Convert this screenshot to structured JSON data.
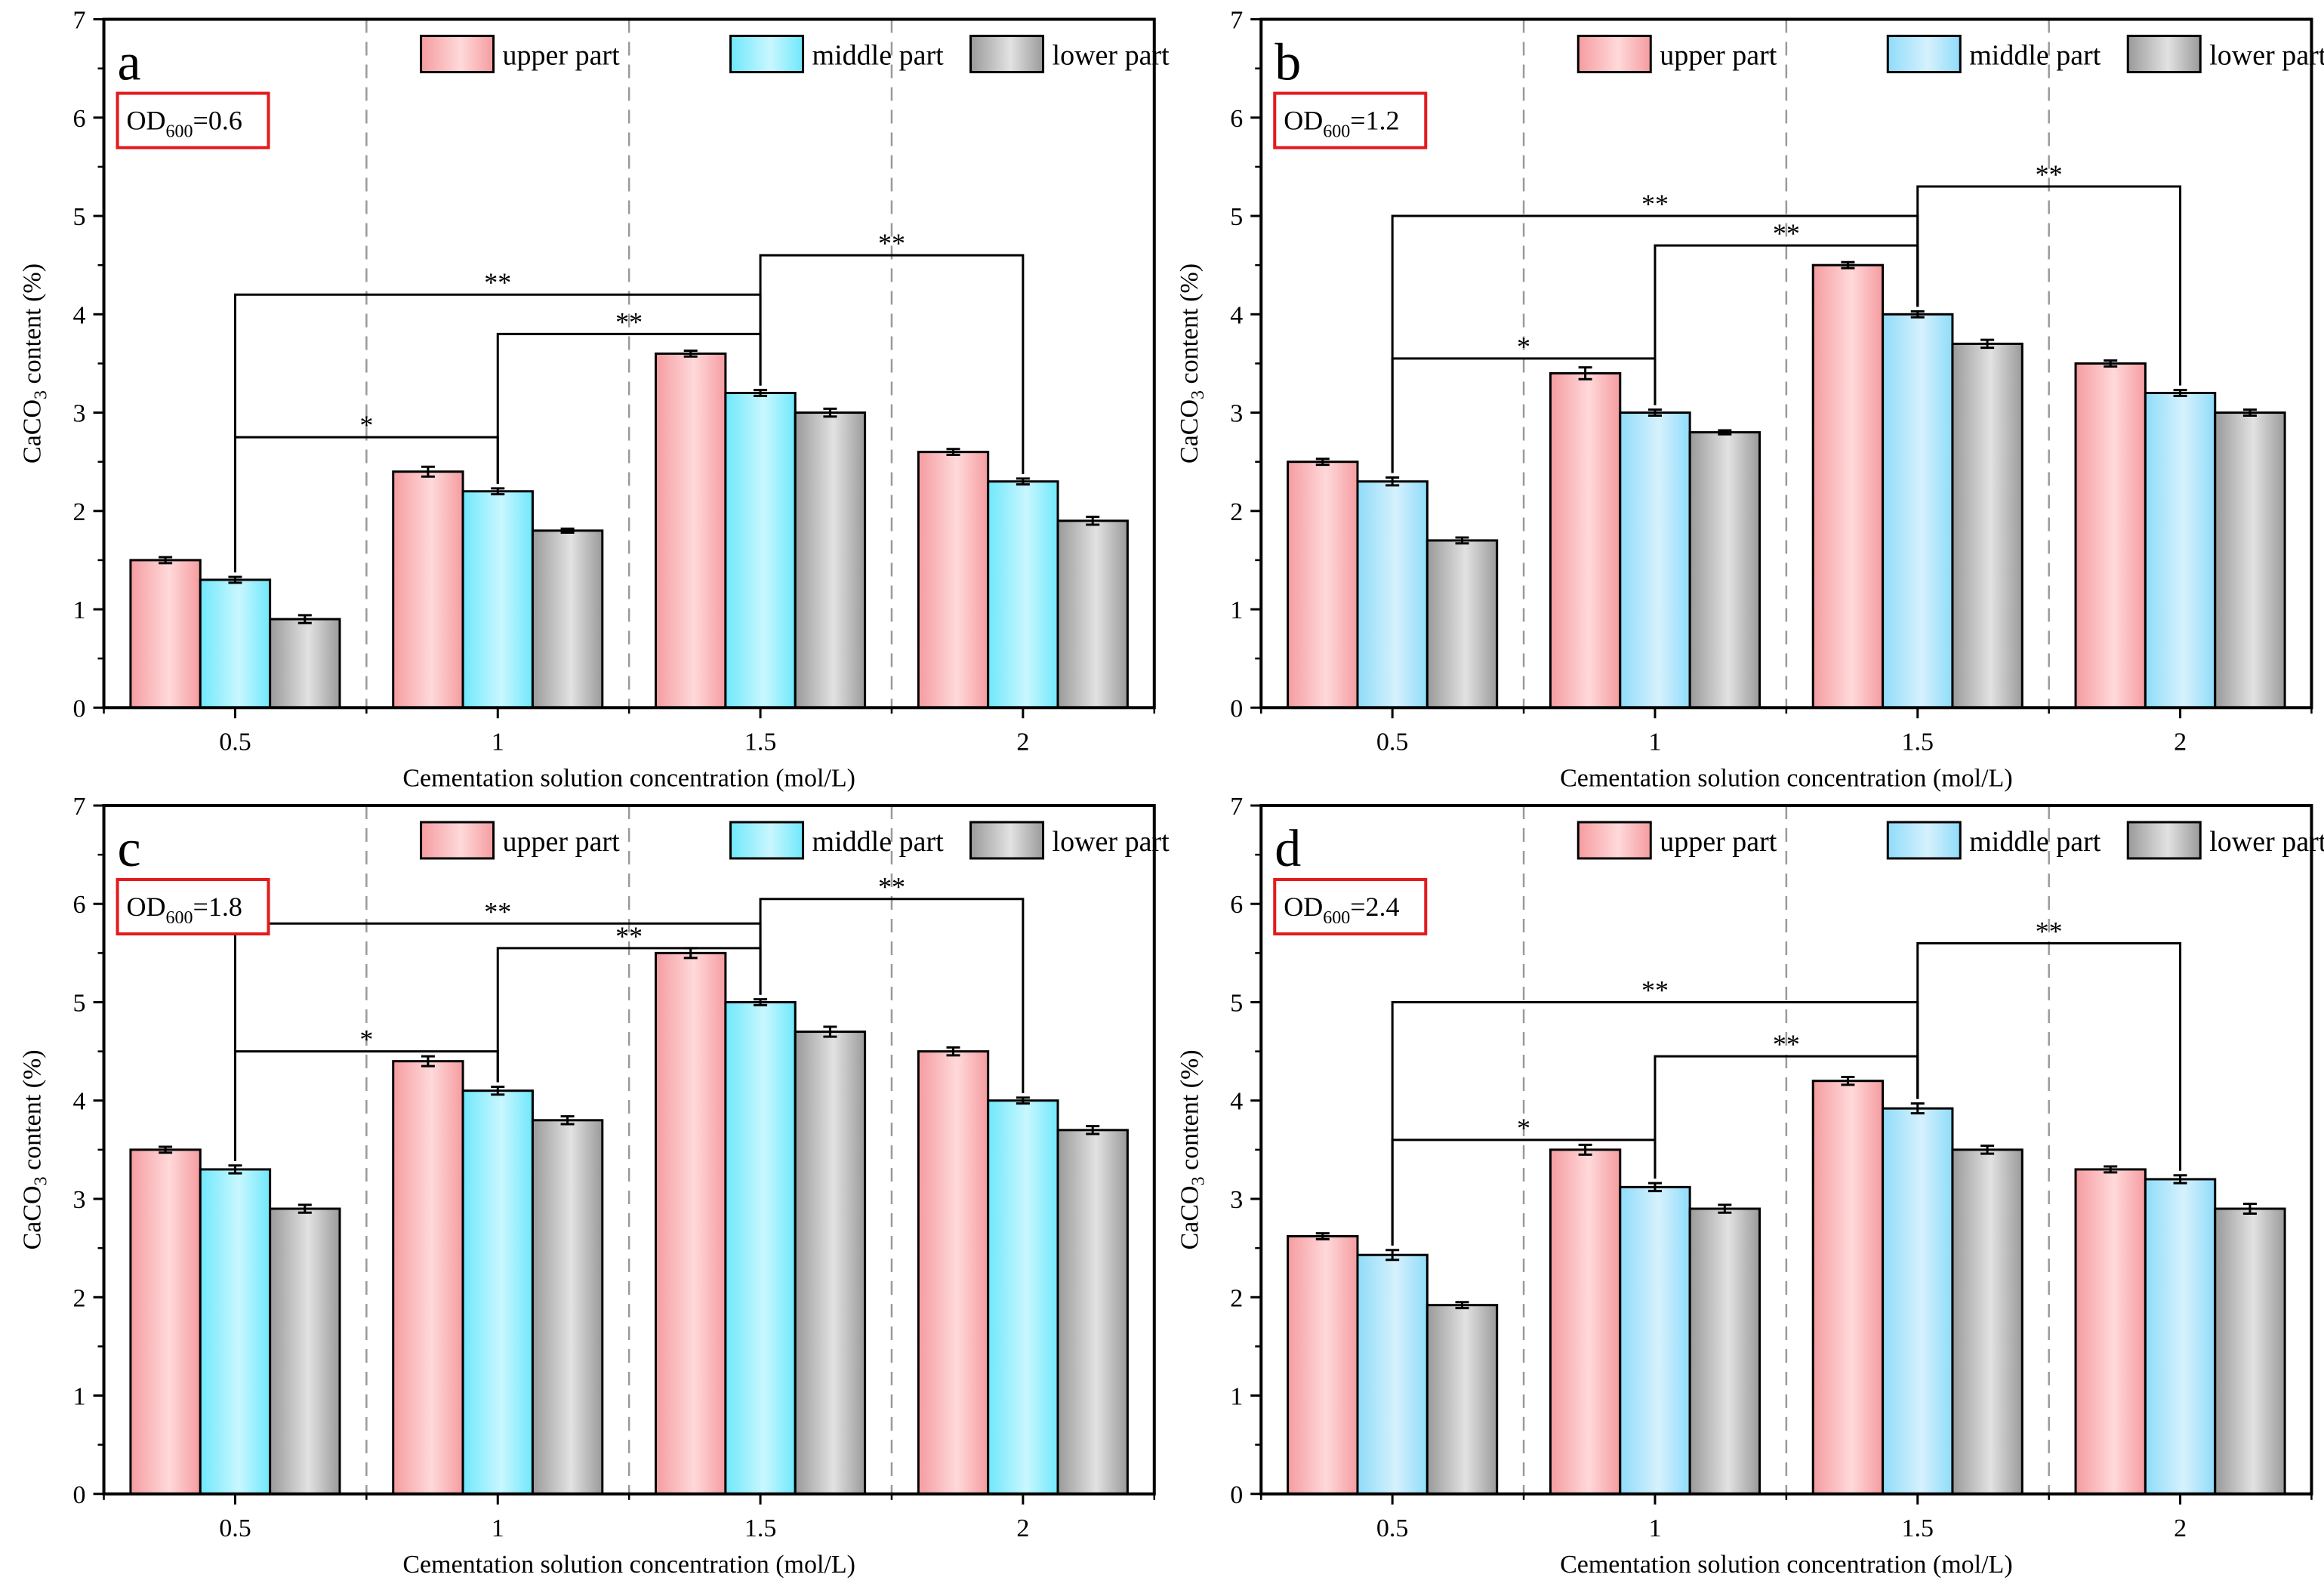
{
  "colors": {
    "upper": "#f59ca0",
    "middle": "#6fe8fb",
    "middle_alt": "#8fdcfa",
    "lower": "#9a9a9a",
    "axis": "#000000",
    "grid": "#9a9a9a",
    "od_box": "#e41a1c"
  },
  "chart_data": [
    {
      "panel": "a",
      "type": "bar",
      "od_prefix": "OD",
      "od_sub": "600",
      "od_value": "=0.6",
      "categories": [
        "0.5",
        "1",
        "1.5",
        "2"
      ],
      "series": [
        {
          "name": "upper part",
          "values": [
            1.5,
            2.4,
            3.6,
            2.6
          ],
          "errors": [
            0.03,
            0.05,
            0.03,
            0.03
          ]
        },
        {
          "name": "middle part",
          "values": [
            1.3,
            2.2,
            3.2,
            2.3
          ],
          "errors": [
            0.03,
            0.03,
            0.03,
            0.03
          ]
        },
        {
          "name": "lower part",
          "values": [
            0.9,
            1.8,
            3.0,
            1.9
          ],
          "errors": [
            0.04,
            0.02,
            0.04,
            0.04
          ]
        }
      ],
      "xlabel": "Cementation solution concentration (mol/L)",
      "ylabel_prefix": "CaCO",
      "ylabel_sub": "3",
      "ylabel_suffix": " content (%)",
      "ylim": [
        0,
        7
      ],
      "yticks": [
        "0",
        "1",
        "2",
        "3",
        "4",
        "5",
        "6",
        "7"
      ],
      "significance": [
        {
          "from": 0,
          "to": 1,
          "y": 2.75,
          "label": "*"
        },
        {
          "from": 0,
          "to": 2,
          "y": 4.2,
          "label": "**"
        },
        {
          "from": 1,
          "to": 2,
          "y": 3.8,
          "label": "**"
        },
        {
          "from": 2,
          "to": 3,
          "y": 4.6,
          "label": "**"
        }
      ]
    },
    {
      "panel": "b",
      "type": "bar",
      "od_prefix": "OD",
      "od_sub": "600",
      "od_value": "=1.2",
      "categories": [
        "0.5",
        "1",
        "1.5",
        "2"
      ],
      "series": [
        {
          "name": "upper part",
          "values": [
            2.5,
            3.4,
            4.5,
            3.5
          ],
          "errors": [
            0.03,
            0.06,
            0.03,
            0.03
          ]
        },
        {
          "name": "middle part",
          "values": [
            2.3,
            3.0,
            4.0,
            3.2
          ],
          "errors": [
            0.04,
            0.03,
            0.03,
            0.03
          ]
        },
        {
          "name": "lower part",
          "values": [
            1.7,
            2.8,
            3.7,
            3.0
          ],
          "errors": [
            0.03,
            0.02,
            0.04,
            0.03
          ]
        }
      ],
      "xlabel": "Cementation solution concentration (mol/L)",
      "ylabel_prefix": "CaCO",
      "ylabel_sub": "3",
      "ylabel_suffix": " content (%)",
      "ylim": [
        0,
        7
      ],
      "yticks": [
        "0",
        "1",
        "2",
        "3",
        "4",
        "5",
        "6",
        "7"
      ],
      "significance": [
        {
          "from": 0,
          "to": 1,
          "y": 3.55,
          "label": "*"
        },
        {
          "from": 0,
          "to": 2,
          "y": 5.0,
          "label": "**"
        },
        {
          "from": 1,
          "to": 2,
          "y": 4.7,
          "label": "**"
        },
        {
          "from": 2,
          "to": 3,
          "y": 5.3,
          "label": "**"
        }
      ]
    },
    {
      "panel": "c",
      "type": "bar",
      "od_prefix": "OD",
      "od_sub": "600",
      "od_value": "=1.8",
      "categories": [
        "0.5",
        "1",
        "1.5",
        "2"
      ],
      "series": [
        {
          "name": "upper part",
          "values": [
            3.5,
            4.4,
            5.5,
            4.5
          ],
          "errors": [
            0.03,
            0.05,
            0.05,
            0.04
          ]
        },
        {
          "name": "middle part",
          "values": [
            3.3,
            4.1,
            5.0,
            4.0
          ],
          "errors": [
            0.04,
            0.04,
            0.03,
            0.03
          ]
        },
        {
          "name": "lower part",
          "values": [
            2.9,
            3.8,
            4.7,
            3.7
          ],
          "errors": [
            0.04,
            0.04,
            0.05,
            0.04
          ]
        }
      ],
      "xlabel": "Cementation solution concentration (mol/L)",
      "ylabel_prefix": "CaCO",
      "ylabel_sub": "3",
      "ylabel_suffix": " content (%)",
      "ylim": [
        0,
        7
      ],
      "yticks": [
        "0",
        "1",
        "2",
        "3",
        "4",
        "5",
        "6",
        "7"
      ],
      "significance": [
        {
          "from": 0,
          "to": 1,
          "y": 4.5,
          "label": "*"
        },
        {
          "from": 0,
          "to": 2,
          "y": 5.8,
          "label": "**"
        },
        {
          "from": 1,
          "to": 2,
          "y": 5.55,
          "label": "**"
        },
        {
          "from": 2,
          "to": 3,
          "y": 6.05,
          "label": "**"
        }
      ]
    },
    {
      "panel": "d",
      "type": "bar",
      "od_prefix": "OD",
      "od_sub": "600",
      "od_value": "=2.4",
      "categories": [
        "0.5",
        "1",
        "1.5",
        "2"
      ],
      "series": [
        {
          "name": "upper part",
          "values": [
            2.62,
            3.5,
            4.2,
            3.3
          ],
          "errors": [
            0.03,
            0.05,
            0.04,
            0.03
          ]
        },
        {
          "name": "middle part",
          "values": [
            2.43,
            3.12,
            3.92,
            3.2
          ],
          "errors": [
            0.05,
            0.04,
            0.05,
            0.04
          ]
        },
        {
          "name": "lower part",
          "values": [
            1.92,
            2.9,
            3.5,
            2.9
          ],
          "errors": [
            0.03,
            0.04,
            0.04,
            0.05
          ]
        }
      ],
      "xlabel": "Cementation solution concentration (mol/L)",
      "ylabel_prefix": "CaCO",
      "ylabel_sub": "3",
      "ylabel_suffix": " content (%)",
      "ylim": [
        0,
        7
      ],
      "yticks": [
        "0",
        "1",
        "2",
        "3",
        "4",
        "5",
        "6",
        "7"
      ],
      "significance": [
        {
          "from": 0,
          "to": 1,
          "y": 3.6,
          "label": "*"
        },
        {
          "from": 0,
          "to": 2,
          "y": 5.0,
          "label": "**"
        },
        {
          "from": 1,
          "to": 2,
          "y": 4.45,
          "label": "**"
        },
        {
          "from": 2,
          "to": 3,
          "y": 5.6,
          "label": "**"
        }
      ]
    }
  ]
}
